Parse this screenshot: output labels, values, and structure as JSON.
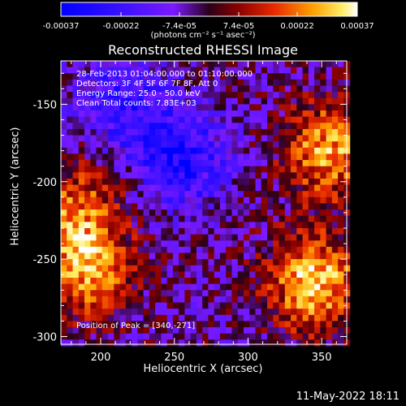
{
  "colorbar": {
    "ticks": [
      "-0.00037",
      "-0.00022",
      "-7.4e-05",
      "7.4e-05",
      "0.00022",
      "0.00037"
    ],
    "tick_values": [
      -0.00037,
      -0.00022,
      -7.4e-05,
      7.4e-05,
      0.00022,
      0.00037
    ],
    "range": [
      -0.00037,
      0.00037
    ],
    "units_label": "(photons cm⁻² s⁻¹ asec⁻²)"
  },
  "plot_title": "Reconstructed RHESSI Image",
  "info": {
    "line1": "28-Feb-2013 01:04:00.000 to 01:10:00.000",
    "line2": "Detectors: 3F 4F 5F 6F 7F 8F, Att 0",
    "line3": "Energy Range: 25.0 - 50.0 keV",
    "line4": "Clean    Total counts: 7.83E+03"
  },
  "peak_text": "Position of Peak = [340,-271]",
  "footer_date": "11-May-2022 18:11",
  "chart_data": {
    "type": "heatmap",
    "title": "Reconstructed RHESSI Image",
    "xlabel": "Heliocentric X (arcsec)",
    "ylabel": "Heliocentric Y (arcsec)",
    "xlim": [
      173,
      367
    ],
    "ylim": [
      -305,
      -122
    ],
    "xticks": [
      200,
      250,
      300,
      350
    ],
    "yticks": [
      -150,
      -200,
      -250,
      -300
    ],
    "colorscale": "blue-purple-red-orange-yellow-white",
    "value_range": [
      -0.00037,
      0.00037
    ],
    "peak": [
      340,
      -271
    ],
    "bright_regions": [
      {
        "x": 345,
        "y": -265,
        "level": 0.00035
      },
      {
        "x": 355,
        "y": -180,
        "level": 0.0003
      },
      {
        "x": 190,
        "y": -255,
        "level": 0.0003
      },
      {
        "x": 185,
        "y": -215,
        "level": 0.0002
      }
    ],
    "dark_regions": [
      {
        "x": 255,
        "y": -185,
        "level": -0.00025
      },
      {
        "x": 215,
        "y": -150,
        "level": -0.0002
      }
    ]
  }
}
